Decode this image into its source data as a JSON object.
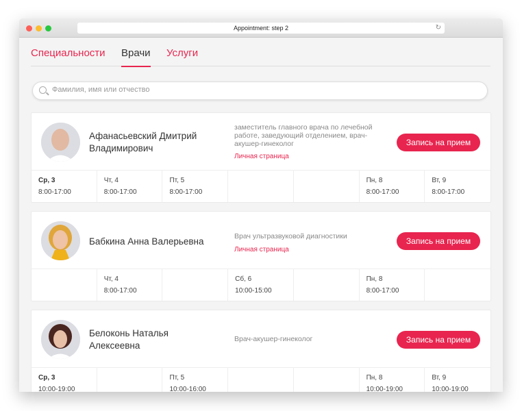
{
  "window": {
    "title": "Appointment: step 2"
  },
  "tabs": [
    {
      "label": "Специальности",
      "active": false
    },
    {
      "label": "Врачи",
      "active": true
    },
    {
      "label": "Услуги",
      "active": false
    }
  ],
  "search": {
    "placeholder": "Фамилия, имя или отчество",
    "value": ""
  },
  "accent": "#e8254f",
  "doctors": [
    {
      "name": "Афанасьевский Дмитрий Владимирович",
      "specialty": "заместитель главного врача по лечебной работе, заведующий отделением, врач-акушер-гинеколог",
      "link": "Личная страница",
      "button": "Запись на прием",
      "schedule": [
        {
          "day": "Ср, 3",
          "hours": "8:00-17:00"
        },
        {
          "day": "Чт, 4",
          "hours": "8:00-17:00"
        },
        {
          "day": "Пт, 5",
          "hours": "8:00-17:00"
        },
        {
          "day": "",
          "hours": ""
        },
        {
          "day": "",
          "hours": ""
        },
        {
          "day": "Пн, 8",
          "hours": "8:00-17:00"
        },
        {
          "day": "Вт, 9",
          "hours": "8:00-17:00"
        }
      ]
    },
    {
      "name": "Бабкина Анна Валерьевна",
      "specialty": "Врач ультразвуковой диагностики",
      "link": "Личная страница",
      "button": "Запись на прием",
      "schedule": [
        {
          "day": "",
          "hours": ""
        },
        {
          "day": "Чт, 4",
          "hours": "8:00-17:00"
        },
        {
          "day": "",
          "hours": ""
        },
        {
          "day": "Сб, 6",
          "hours": "10:00-15:00"
        },
        {
          "day": "",
          "hours": ""
        },
        {
          "day": "Пн, 8",
          "hours": "8:00-17:00"
        },
        {
          "day": "",
          "hours": ""
        }
      ]
    },
    {
      "name": "Белоконь Наталья Алексеевна",
      "specialty": "Врач-акушер-гинеколог",
      "button": "Запись на прием",
      "schedule": [
        {
          "day": "Ср, 3",
          "hours": "10:00-19:00"
        },
        {
          "day": "",
          "hours": ""
        },
        {
          "day": "Пт, 5",
          "hours": "10:00-16:00"
        },
        {
          "day": "",
          "hours": ""
        },
        {
          "day": "",
          "hours": ""
        },
        {
          "day": "Пн, 8",
          "hours": "10:00-19:00"
        },
        {
          "day": "Вт, 9",
          "hours": "10:00-19:00"
        }
      ]
    }
  ]
}
